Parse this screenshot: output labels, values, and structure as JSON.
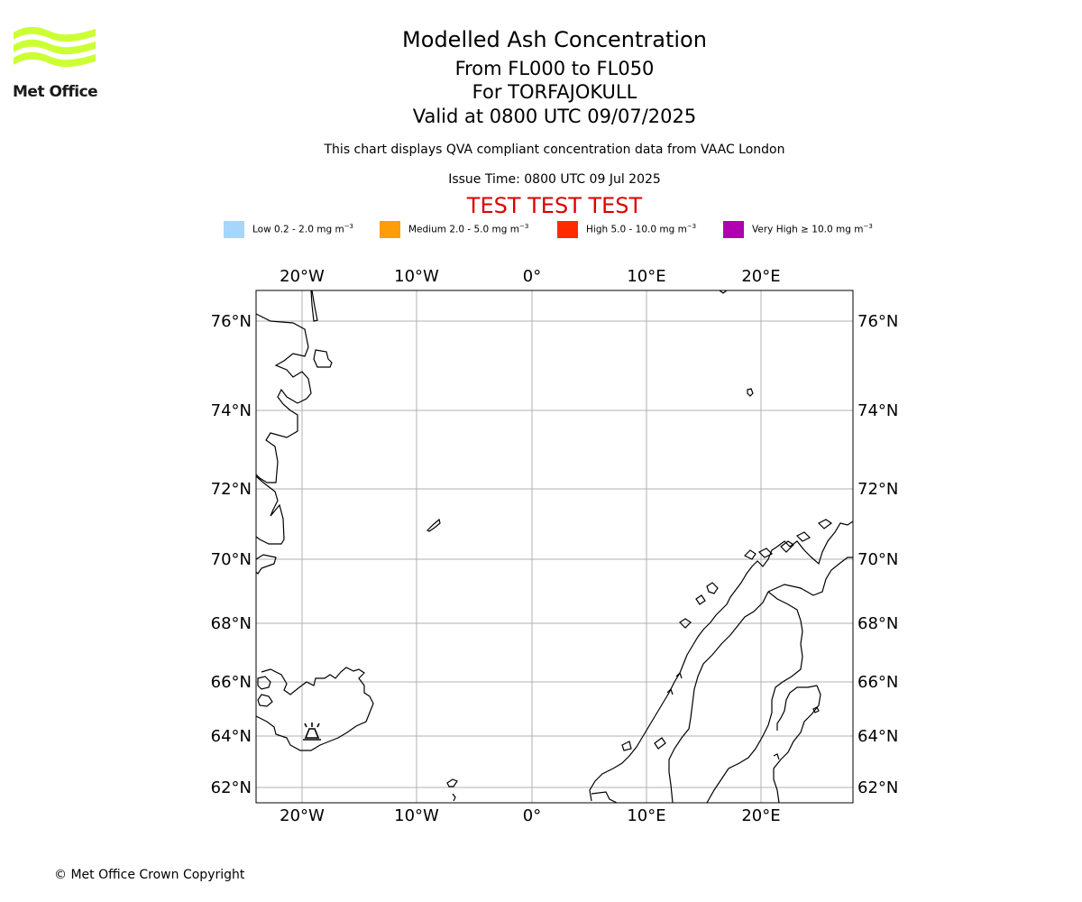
{
  "logo": {
    "name": "Met Office",
    "color": "#ccff33"
  },
  "header": {
    "title": "Modelled Ash Concentration",
    "levels": "From FL000 to FL050",
    "volcano": "For TORFAJOKULL",
    "valid": "Valid at 0800 UTC 09/07/2025",
    "subtitle": "This chart displays QVA compliant concentration data from VAAC London",
    "issue_time": "Issue Time: 0800 UTC 09 Jul 2025",
    "test_banner": "TEST TEST TEST",
    "test_color": "#dd0000"
  },
  "legend": [
    {
      "label": "Low 0.2 - 2.0 mg m",
      "unit_sup": "−3",
      "color": "#a6d6fc"
    },
    {
      "label": "Medium 2.0 - 5.0 mg m",
      "unit_sup": "−3",
      "color": "#ff9c0a"
    },
    {
      "label": "High 5.0 - 10.0 mg m",
      "unit_sup": "−3",
      "color": "#ff2a00"
    },
    {
      "label": "Very High  ≥  10.0 mg m",
      "unit_sup": "−3",
      "color": "#b000b0"
    }
  ],
  "map": {
    "lon_labels": [
      "20°W",
      "10°W",
      "0°",
      "10°E",
      "20°E"
    ],
    "lat_labels": [
      "76°N",
      "74°N",
      "72°N",
      "70°N",
      "68°N",
      "66°N",
      "64°N",
      "62°N"
    ],
    "volcano_marker": "volcano-icon"
  },
  "footer": {
    "copyright": "© Met Office Crown Copyright"
  }
}
